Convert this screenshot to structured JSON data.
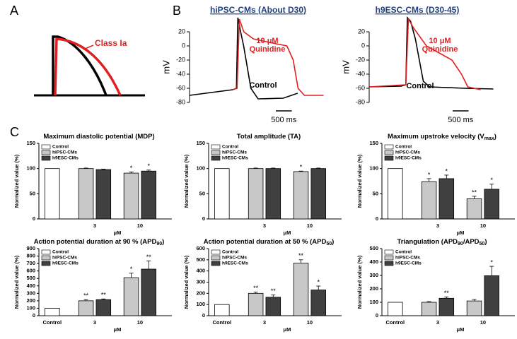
{
  "panel_labels": [
    "A",
    "B",
    "C"
  ],
  "schematic_label": "Class Ia",
  "chart_data": [
    {
      "type": "line",
      "title": "hiPSC-CMs (About D30)",
      "ylabel": "mV",
      "xlim": [
        0,
        4300
      ],
      "ylim": [
        -80,
        20
      ],
      "yticks": [
        -80,
        -60,
        -40,
        -20,
        0,
        20
      ],
      "annotations": [
        "10 μM",
        "Quinidine",
        "Control"
      ],
      "scale_bar": {
        "value": 500,
        "label": "500 ms"
      },
      "series": [
        {
          "color": "#000000",
          "x": [
            0,
            1356,
            1470,
            1514,
            1600,
            1695,
            1921,
            2147,
            2938,
            3390
          ],
          "values": [
            -70,
            -62,
            -60,
            40,
            20,
            0,
            -60,
            -75,
            -74,
            -67
          ]
        },
        {
          "color": "#e02020",
          "x": [
            1356,
            1490,
            1560,
            1700,
            2000,
            2500,
            3050,
            3250,
            3400,
            3600,
            4200
          ],
          "values": [
            -62,
            -60,
            38,
            20,
            10,
            5,
            0,
            -20,
            -60,
            -70,
            -70
          ]
        }
      ]
    },
    {
      "type": "line",
      "title": "h9ESC-CMs (D30-45)",
      "ylabel": "mV",
      "xlim": [
        0,
        4000
      ],
      "ylim": [
        -80,
        20
      ],
      "yticks": [
        -80,
        -60,
        -40,
        -20,
        0,
        20
      ],
      "annotations": [
        "10 μM",
        "Quinidine",
        "Control"
      ],
      "scale_bar": {
        "value": 500,
        "label": "500 ms"
      },
      "series": [
        {
          "color": "#000000",
          "x": [
            0,
            1000,
            1150,
            1200,
            1300,
            1450,
            1700,
            1900,
            3000,
            3900
          ],
          "values": [
            -58,
            -57,
            -55,
            40,
            35,
            10,
            -50,
            -58,
            -60,
            -61
          ]
        },
        {
          "color": "#e02020",
          "x": [
            0,
            1150,
            1230,
            1400,
            1800,
            2200,
            2600,
            2900,
            3100,
            3500
          ],
          "values": [
            -58,
            -55,
            38,
            25,
            0,
            -10,
            -20,
            -40,
            -58,
            -62
          ]
        }
      ]
    },
    {
      "type": "bar",
      "title": [
        "Maximum diastolic potential (MDP)"
      ],
      "ylabel": "Normalized value (%)",
      "xlabel": "μM",
      "categories": [
        null,
        "3",
        "10"
      ],
      "ylim": [
        0,
        150
      ],
      "yticks": [
        0,
        50,
        100,
        150
      ],
      "series": [
        {
          "name": "Control",
          "color": "#ffffff",
          "values": [
            100,
            null,
            null
          ],
          "errors": [
            null,
            null,
            null
          ],
          "annotations": [
            null,
            null,
            null
          ]
        },
        {
          "name": "hiPSC-CMs",
          "color": "#c8c8c8",
          "values": [
            null,
            100,
            91
          ],
          "errors": [
            null,
            1,
            2
          ],
          "annotations": [
            null,
            null,
            "*"
          ]
        },
        {
          "name": "h9ESC-CMs",
          "color": "#404040",
          "values": [
            null,
            98,
            95
          ],
          "errors": [
            null,
            1,
            2
          ],
          "annotations": [
            null,
            null,
            "*"
          ]
        }
      ]
    },
    {
      "type": "bar",
      "title": [
        "Total amplitude (TA)"
      ],
      "ylabel": "Normalized value (%)",
      "xlabel": "μM",
      "categories": [
        null,
        "3",
        "10"
      ],
      "ylim": [
        0,
        150
      ],
      "yticks": [
        0,
        50,
        100,
        150
      ],
      "series": [
        {
          "name": "Control",
          "color": "#ffffff",
          "values": [
            100,
            null,
            null
          ],
          "errors": [
            null,
            null,
            null
          ],
          "annotations": [
            null,
            null,
            null
          ]
        },
        {
          "name": "hiPSC-CMs",
          "color": "#c8c8c8",
          "values": [
            null,
            100,
            94
          ],
          "errors": [
            null,
            1,
            1
          ],
          "annotations": [
            null,
            null,
            "*"
          ]
        },
        {
          "name": "h9ESC-CMs",
          "color": "#404040",
          "values": [
            null,
            100,
            100
          ],
          "errors": [
            null,
            1,
            1
          ],
          "annotations": [
            null,
            null,
            null
          ]
        }
      ]
    },
    {
      "type": "bar",
      "title": [
        "Maximum upstroke velocity (V",
        "max",
        ")"
      ],
      "ylabel": "Normalized value (%)",
      "xlabel": "μM",
      "categories": [
        null,
        "3",
        "10"
      ],
      "ylim": [
        0,
        150
      ],
      "yticks": [
        0,
        50,
        100,
        150
      ],
      "series": [
        {
          "name": "Control",
          "color": "#ffffff",
          "values": [
            100,
            null,
            null
          ],
          "errors": [
            null,
            null,
            null
          ],
          "annotations": [
            null,
            null,
            null
          ]
        },
        {
          "name": "hiPSC-CMs",
          "color": "#c8c8c8",
          "values": [
            null,
            74,
            40
          ],
          "errors": [
            null,
            6,
            5
          ],
          "annotations": [
            null,
            "*",
            "**"
          ]
        },
        {
          "name": "h9ESC-CMs",
          "color": "#404040",
          "values": [
            null,
            80,
            59
          ],
          "errors": [
            null,
            7,
            10
          ],
          "annotations": [
            null,
            "*",
            "*"
          ]
        }
      ]
    },
    {
      "type": "bar",
      "title": [
        "Action potential duration at 90 % (APD",
        "90",
        ")"
      ],
      "ylabel": "Normalized value (%)",
      "xlabel": "μM",
      "categories": [
        "Control",
        "3",
        "10"
      ],
      "ylim": [
        0,
        900
      ],
      "yticks": [
        0,
        100,
        200,
        300,
        400,
        500,
        600,
        700,
        800,
        900
      ],
      "series": [
        {
          "name": "Control",
          "color": "#ffffff",
          "values": [
            100,
            null,
            null
          ],
          "errors": [
            null,
            null,
            null
          ],
          "annotations": [
            null,
            null,
            null
          ]
        },
        {
          "name": "hiPSC-CMs",
          "color": "#c8c8c8",
          "values": [
            null,
            200,
            510
          ],
          "errors": [
            null,
            15,
            60
          ],
          "annotations": [
            null,
            "**",
            "*"
          ]
        },
        {
          "name": "h9ESC-CMs",
          "color": "#404040",
          "values": [
            null,
            215,
            625
          ],
          "errors": [
            null,
            10,
            110
          ],
          "annotations": [
            null,
            "**",
            "**"
          ]
        }
      ]
    },
    {
      "type": "bar",
      "title": [
        "Action potential duration at 50 % (APD",
        "50",
        ")"
      ],
      "ylabel": "Normalized value (%)",
      "xlabel": "μM",
      "categories": [
        "Control",
        "3",
        "10"
      ],
      "ylim": [
        0,
        600
      ],
      "yticks": [
        0,
        100,
        200,
        300,
        400,
        500,
        600
      ],
      "series": [
        {
          "name": "Control",
          "color": "#ffffff",
          "values": [
            100,
            null,
            null
          ],
          "errors": [
            null,
            null,
            null
          ],
          "annotations": [
            null,
            null,
            null
          ]
        },
        {
          "name": "hiPSC-CMs",
          "color": "#c8c8c8",
          "values": [
            null,
            200,
            470
          ],
          "errors": [
            null,
            10,
            30
          ],
          "annotations": [
            null,
            "**",
            "**"
          ]
        },
        {
          "name": "h9ESC-CMs",
          "color": "#404040",
          "values": [
            null,
            165,
            230
          ],
          "errors": [
            null,
            20,
            35
          ],
          "annotations": [
            null,
            "**",
            "*"
          ]
        }
      ]
    },
    {
      "type": "bar",
      "title": [
        "Triangulation (APD",
        "90",
        "/APD",
        "50",
        ")"
      ],
      "ylabel": "Normalized value (%)",
      "xlabel": "μM",
      "categories": [
        "Control",
        "3",
        "10"
      ],
      "ylim": [
        0,
        500
      ],
      "yticks": [
        0,
        100,
        200,
        300,
        400,
        500
      ],
      "series": [
        {
          "name": "Control",
          "color": "#ffffff",
          "values": [
            100,
            null,
            null
          ],
          "errors": [
            null,
            null,
            null
          ],
          "annotations": [
            null,
            null,
            null
          ]
        },
        {
          "name": "hiPSC-CMs",
          "color": "#c8c8c8",
          "values": [
            null,
            100,
            110
          ],
          "errors": [
            null,
            5,
            10
          ],
          "annotations": [
            null,
            null,
            null
          ]
        },
        {
          "name": "h9ESC-CMs",
          "color": "#404040",
          "values": [
            null,
            130,
            298
          ],
          "errors": [
            null,
            10,
            70
          ],
          "annotations": [
            null,
            "**",
            "*"
          ]
        }
      ]
    }
  ]
}
